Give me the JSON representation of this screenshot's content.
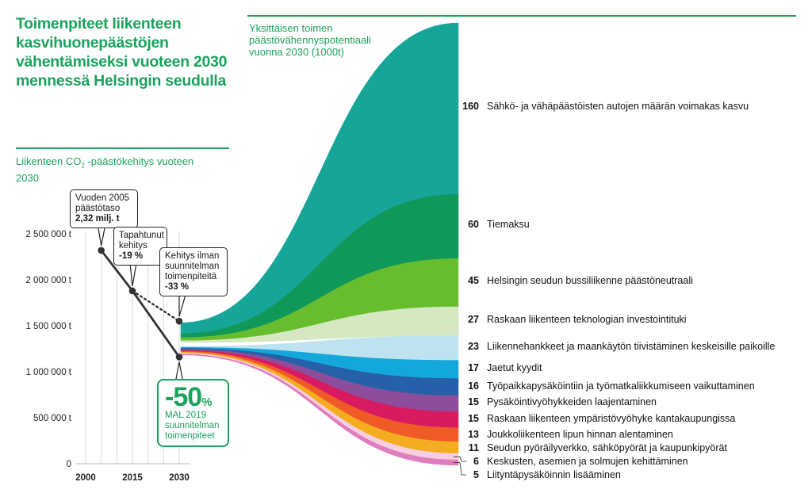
{
  "title": "Toimenpiteet liikenteen kasvihuonepäästöjen vähentämiseksi vuoteen 2030 mennessä Helsingin seudulla",
  "left_panel": {
    "subtitle_pre": "Liikenteen CO",
    "subtitle_sub": "2",
    "subtitle_post": " -päästökehitys vuoteen 2030",
    "callouts": {
      "c2005_text": "Vuoden 2005 päästötaso",
      "c2005_value": "2,32 milj. t",
      "actual_text": "Tapahtunut kehitys",
      "actual_value": "-19 %",
      "without_text": "Kehitys ilman suunnitelman toimenpiteitä",
      "without_value": "-33 %"
    },
    "goal": {
      "value": "-50",
      "unit": "%",
      "text": "MAL 2019 suunnitelman toimenpiteet"
    }
  },
  "right_panel": {
    "subtitle": "Yksittäisen toimen päästövähennyspotentiaali vuonna 2030 (1000t)"
  },
  "chart_data": [
    {
      "type": "line",
      "title": "Liikenteen CO2 -päästökehitys vuoteen 2030",
      "x_ticks": [
        "2000",
        "2015",
        "2030"
      ],
      "y_ticks": [
        "0",
        "500 000 t",
        "1 000 000 t",
        "1 500 000 t",
        "2 000 000 t",
        "2 500 000 t"
      ],
      "x_range": [
        2000,
        2030
      ],
      "ylim": [
        0,
        2500000
      ],
      "grid": "vertical",
      "series": [
        {
          "style": "solid",
          "points": [
            [
              2005,
              2320000
            ],
            [
              2015,
              1880000
            ],
            [
              2030,
              1160000
            ]
          ]
        },
        {
          "style": "dotted",
          "points": [
            [
              2015,
              1880000
            ],
            [
              2030,
              1550000
            ]
          ]
        }
      ]
    },
    {
      "type": "area",
      "title": "Yksittäisen toimen päästövähennyspotentiaali vuonna 2030 (1000t)",
      "categories": [
        "Sähkö- ja vähäpäästöisten autojen määrän voimakas kasvu",
        "Tiemaksu",
        "Helsingin seudun bussiliikenne päästöneutraali",
        "Raskaan liikenteen teknologian investointituki",
        "Liikennehankkeet ja maankäytön tiivistäminen keskeisille paikoille",
        "Jaetut kyydit",
        "Työpaikkapysäköintiin ja työmatkaliikkumiseen vaikuttaminen",
        "Pysäköintivyöhykkeiden laajentaminen",
        "Raskaan liikenteen ympäristövyöhyke kantakaupungissa",
        "Joukkoliikenteen lipun hinnan alentaminen",
        "Seudun pyöräilyverkko, sähköpyörät ja kaupunkipyörät",
        "Keskusten, asemien ja solmujen kehittäminen",
        "Liityntäpysäköinnin lisääminen"
      ],
      "values": [
        160,
        60,
        45,
        27,
        23,
        17,
        16,
        15,
        15,
        13,
        11,
        6,
        5
      ],
      "values_text": [
        "160",
        "60",
        "45",
        "27",
        "23",
        "17",
        "16",
        "15",
        "15",
        "13",
        "11",
        "6",
        "5"
      ],
      "colors": [
        "#17a599",
        "#10985a",
        "#67bd2d",
        "#d6e8c2",
        "#bfe2f1",
        "#14a7db",
        "#2660a8",
        "#8c4e9a",
        "#d81b60",
        "#ef5a26",
        "#f4ac20",
        "#f7cde0",
        "#e07cbf"
      ]
    }
  ]
}
